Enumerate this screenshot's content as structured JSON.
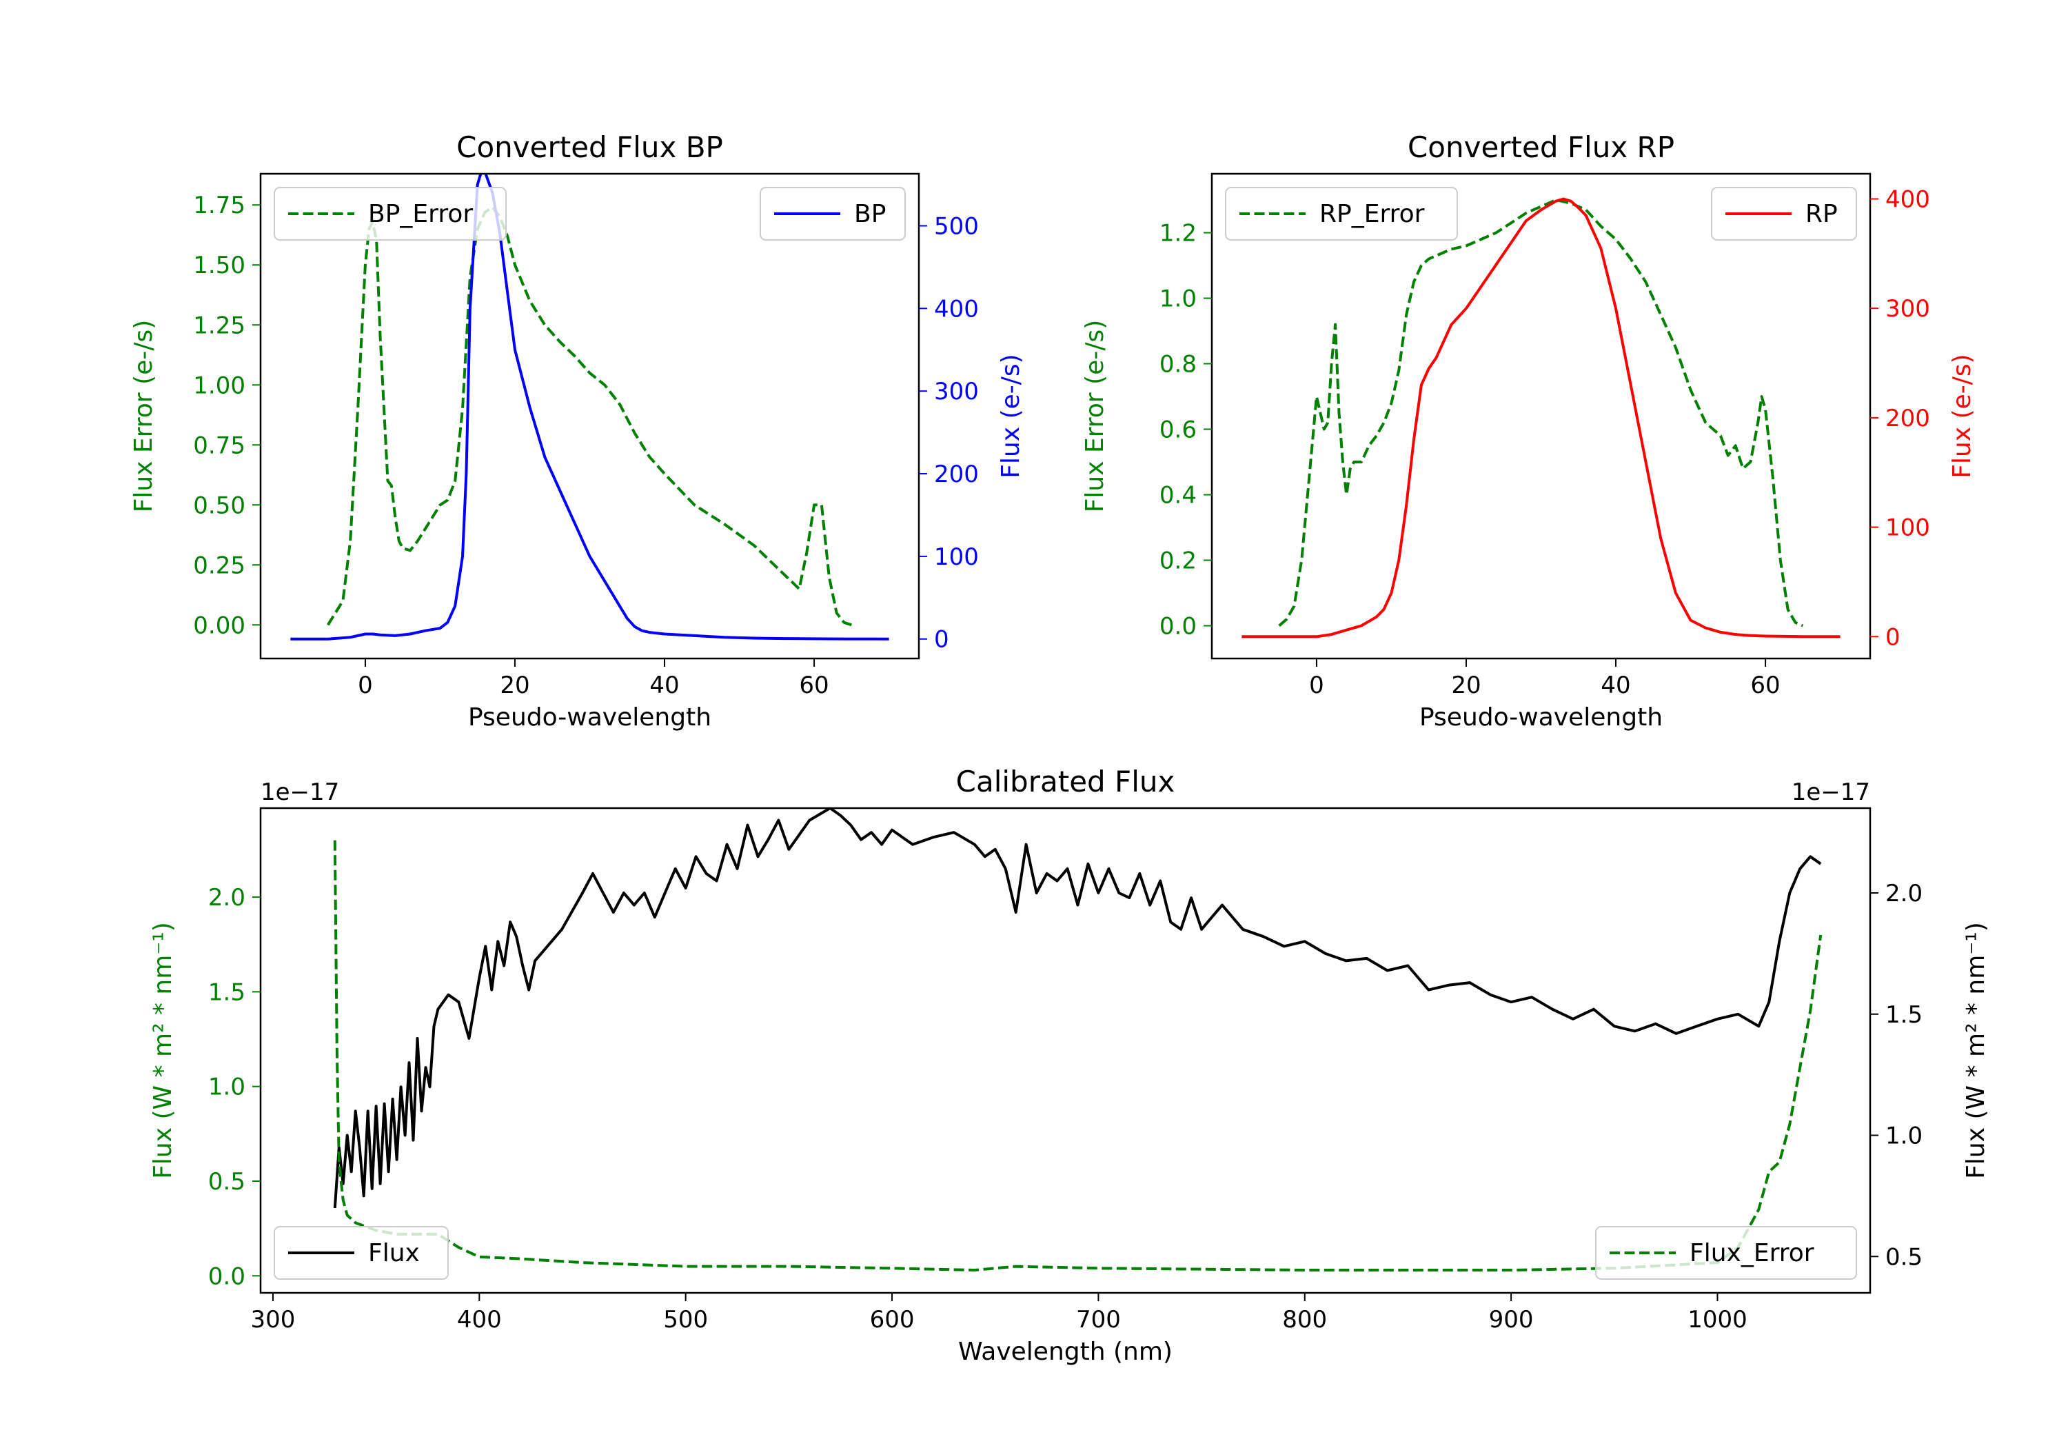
{
  "chart_data": [
    {
      "type": "line",
      "title": "Converted Flux BP",
      "xlabel": "Pseudo-wavelength",
      "ylabel_left": "Flux Error (e-/s)",
      "ylabel_right": "Flux (e-/s)",
      "xlim": [
        -14,
        74
      ],
      "ylim_left": [
        -0.14,
        1.88
      ],
      "ylim_right": [
        -23.6,
        563
      ],
      "xticks": [
        0,
        20,
        40,
        60
      ],
      "yticks_left": [
        0.0,
        0.25,
        0.5,
        0.75,
        1.0,
        1.25,
        1.5,
        1.75
      ],
      "yticks_right": [
        0,
        100,
        200,
        300,
        400,
        500
      ],
      "colors": {
        "error": "#008000",
        "flux": "#0000ff"
      },
      "series": [
        {
          "name": "BP_Error",
          "axis": "left",
          "style": "dashed",
          "x": [
            -5,
            -3,
            -2,
            -1,
            0,
            0.5,
            1,
            1.5,
            2,
            3,
            3.5,
            4,
            4.5,
            5,
            6,
            7,
            8,
            9,
            10,
            11,
            12,
            13,
            14,
            15,
            16,
            17,
            18,
            19,
            20,
            22,
            24,
            26,
            28,
            30,
            32,
            34,
            36,
            38,
            40,
            44,
            48,
            52,
            55,
            57,
            58,
            59,
            60,
            61,
            62,
            63,
            64,
            65
          ],
          "values": [
            0,
            0.1,
            0.35,
            0.9,
            1.5,
            1.65,
            1.68,
            1.6,
            1.2,
            0.6,
            0.58,
            0.45,
            0.35,
            0.32,
            0.31,
            0.35,
            0.4,
            0.45,
            0.5,
            0.52,
            0.6,
            0.9,
            1.45,
            1.65,
            1.72,
            1.74,
            1.7,
            1.62,
            1.5,
            1.35,
            1.25,
            1.18,
            1.12,
            1.05,
            1.0,
            0.92,
            0.8,
            0.7,
            0.63,
            0.5,
            0.42,
            0.33,
            0.24,
            0.18,
            0.15,
            0.3,
            0.5,
            0.5,
            0.2,
            0.05,
            0.01,
            0
          ]
        },
        {
          "name": "BP",
          "axis": "right",
          "style": "solid",
          "x": [
            -10,
            -5,
            -2,
            0,
            1,
            2,
            4,
            6,
            8,
            10,
            11,
            12,
            13,
            13.5,
            14,
            15,
            15.5,
            16,
            17,
            18,
            19,
            20,
            22,
            24,
            26,
            28,
            30,
            32,
            34,
            35,
            36,
            37,
            38,
            40,
            44,
            48,
            52,
            56,
            60,
            64,
            70
          ],
          "values": [
            0,
            0,
            2,
            6,
            6,
            5,
            4,
            6,
            10,
            13,
            20,
            40,
            100,
            200,
            400,
            550,
            565,
            565,
            540,
            490,
            420,
            350,
            280,
            220,
            180,
            140,
            100,
            70,
            40,
            25,
            15,
            10,
            8,
            6,
            4,
            2,
            1,
            0.5,
            0.3,
            0.1,
            0
          ]
        }
      ],
      "legend": [
        {
          "label": "BP_Error",
          "location": "upper left"
        },
        {
          "label": "BP",
          "location": "upper right"
        }
      ]
    },
    {
      "type": "line",
      "title": "Converted Flux RP",
      "xlabel": "Pseudo-wavelength",
      "ylabel_left": "Flux Error (e-/s)",
      "ylabel_right": "Flux (e-/s)",
      "xlim": [
        -14,
        74
      ],
      "ylim_left": [
        -0.1,
        1.38
      ],
      "ylim_right": [
        -20,
        423
      ],
      "xticks": [
        0,
        20,
        40,
        60
      ],
      "yticks_left": [
        0.0,
        0.2,
        0.4,
        0.6,
        0.8,
        1.0,
        1.2
      ],
      "yticks_right": [
        0,
        100,
        200,
        300,
        400
      ],
      "colors": {
        "error": "#008000",
        "flux": "#ff0000"
      },
      "series": [
        {
          "name": "RP_Error",
          "axis": "left",
          "style": "dashed",
          "x": [
            -5,
            -4,
            -3,
            -2,
            -1,
            0,
            0.5,
            1,
            1.5,
            2,
            2.5,
            3,
            3.5,
            4,
            4.5,
            5,
            6,
            7,
            8,
            9,
            10,
            11,
            12,
            13,
            14,
            15,
            16,
            18,
            20,
            22,
            24,
            26,
            28,
            30,
            32,
            34,
            36,
            38,
            40,
            42,
            44,
            46,
            48,
            50,
            52,
            54,
            55,
            56,
            57,
            58,
            59,
            59.5,
            60,
            61,
            62,
            63,
            64,
            65
          ],
          "values": [
            0,
            0.02,
            0.06,
            0.2,
            0.45,
            0.7,
            0.65,
            0.6,
            0.62,
            0.8,
            0.92,
            0.65,
            0.5,
            0.4,
            0.48,
            0.5,
            0.5,
            0.55,
            0.58,
            0.62,
            0.68,
            0.78,
            0.95,
            1.05,
            1.1,
            1.12,
            1.13,
            1.15,
            1.16,
            1.18,
            1.2,
            1.23,
            1.26,
            1.28,
            1.3,
            1.29,
            1.27,
            1.22,
            1.18,
            1.12,
            1.05,
            0.95,
            0.85,
            0.72,
            0.62,
            0.58,
            0.52,
            0.55,
            0.48,
            0.5,
            0.62,
            0.7,
            0.66,
            0.45,
            0.2,
            0.05,
            0.01,
            0
          ]
        },
        {
          "name": "RP",
          "axis": "right",
          "style": "solid",
          "x": [
            -10,
            -5,
            0,
            2,
            4,
            6,
            8,
            9,
            10,
            11,
            12,
            13,
            14,
            15,
            16,
            18,
            20,
            22,
            24,
            26,
            28,
            30,
            32,
            33,
            34,
            35,
            36,
            38,
            40,
            42,
            44,
            46,
            48,
            50,
            52,
            54,
            56,
            58,
            60,
            65,
            70
          ],
          "values": [
            0,
            0,
            0,
            2,
            6,
            10,
            18,
            25,
            40,
            70,
            120,
            180,
            230,
            245,
            255,
            285,
            300,
            320,
            340,
            360,
            380,
            390,
            398,
            400,
            398,
            392,
            385,
            355,
            300,
            230,
            160,
            90,
            40,
            15,
            8,
            4,
            2,
            1,
            0.5,
            0,
            0
          ]
        }
      ],
      "legend": [
        {
          "label": "RP_Error",
          "location": "upper left"
        },
        {
          "label": "RP",
          "location": "upper right"
        }
      ]
    },
    {
      "type": "line",
      "title": "Calibrated Flux",
      "xlabel": "Wavelength (nm)",
      "ylabel_left": "Flux (W * m² * nm⁻¹)",
      "ylabel_right": "Flux (W * m² * nm⁻¹)",
      "offset_left": "1e−17",
      "offset_right": "1e−17",
      "xlim": [
        294,
        1074
      ],
      "ylim_left": [
        -0.09,
        2.47
      ],
      "ylim_right": [
        0.35,
        2.35
      ],
      "xticks": [
        300,
        400,
        500,
        600,
        700,
        800,
        900,
        1000
      ],
      "yticks_left": [
        0.0,
        0.5,
        1.0,
        1.5,
        2.0
      ],
      "yticks_right": [
        0.5,
        1.0,
        1.5,
        2.0
      ],
      "colors": {
        "error": "#008000",
        "flux": "#000000"
      },
      "series": [
        {
          "name": "Flux",
          "axis": "right",
          "style": "solid",
          "x": [
            330,
            332,
            334,
            336,
            338,
            340,
            342,
            344,
            346,
            348,
            350,
            352,
            354,
            356,
            358,
            360,
            362,
            364,
            366,
            368,
            370,
            372,
            374,
            376,
            378,
            380,
            385,
            390,
            395,
            400,
            403,
            406,
            409,
            412,
            415,
            418,
            421,
            424,
            427,
            430,
            440,
            450,
            455,
            460,
            465,
            470,
            475,
            480,
            485,
            490,
            495,
            500,
            505,
            510,
            515,
            520,
            525,
            530,
            535,
            540,
            545,
            550,
            560,
            570,
            575,
            580,
            585,
            590,
            595,
            600,
            610,
            620,
            630,
            640,
            645,
            650,
            655,
            660,
            665,
            670,
            675,
            680,
            685,
            690,
            695,
            700,
            705,
            710,
            715,
            720,
            725,
            730,
            735,
            740,
            745,
            750,
            755,
            760,
            770,
            780,
            790,
            800,
            810,
            820,
            830,
            840,
            850,
            860,
            870,
            880,
            890,
            900,
            910,
            920,
            930,
            940,
            950,
            960,
            970,
            980,
            990,
            1000,
            1010,
            1020,
            1025,
            1030,
            1035,
            1040,
            1045,
            1050
          ],
          "values": [
            0.7,
            0.95,
            0.8,
            1.0,
            0.85,
            1.1,
            0.95,
            0.75,
            1.1,
            0.78,
            1.12,
            0.8,
            1.13,
            0.85,
            1.15,
            0.9,
            1.2,
            1.0,
            1.3,
            0.98,
            1.4,
            1.1,
            1.28,
            1.2,
            1.45,
            1.52,
            1.58,
            1.55,
            1.4,
            1.65,
            1.78,
            1.6,
            1.8,
            1.7,
            1.88,
            1.82,
            1.7,
            1.6,
            1.72,
            1.75,
            1.85,
            2.0,
            2.08,
            2.0,
            1.92,
            2.0,
            1.95,
            2.0,
            1.9,
            2.0,
            2.1,
            2.02,
            2.15,
            2.08,
            2.05,
            2.2,
            2.1,
            2.28,
            2.15,
            2.22,
            2.3,
            2.18,
            2.3,
            2.35,
            2.32,
            2.28,
            2.22,
            2.25,
            2.2,
            2.26,
            2.2,
            2.23,
            2.25,
            2.2,
            2.15,
            2.18,
            2.1,
            1.92,
            2.2,
            2.0,
            2.08,
            2.05,
            2.1,
            1.95,
            2.12,
            2.0,
            2.1,
            2.0,
            1.98,
            2.08,
            1.95,
            2.05,
            1.88,
            1.85,
            1.98,
            1.85,
            1.9,
            1.95,
            1.85,
            1.82,
            1.78,
            1.8,
            1.75,
            1.72,
            1.73,
            1.68,
            1.7,
            1.6,
            1.62,
            1.63,
            1.58,
            1.55,
            1.57,
            1.52,
            1.48,
            1.52,
            1.45,
            1.43,
            1.46,
            1.42,
            1.45,
            1.48,
            1.5,
            1.45,
            1.55,
            1.8,
            2.0,
            2.1,
            2.15,
            2.12
          ]
        },
        {
          "name": "Flux_Error",
          "axis": "left",
          "style": "dashed",
          "x": [
            330,
            331,
            332,
            334,
            336,
            340,
            345,
            350,
            360,
            370,
            380,
            390,
            400,
            420,
            450,
            500,
            550,
            600,
            640,
            660,
            700,
            800,
            900,
            950,
            1000,
            1010,
            1015,
            1020,
            1025,
            1030,
            1035,
            1040,
            1045,
            1050
          ],
          "values": [
            2.3,
            1.2,
            0.6,
            0.4,
            0.32,
            0.28,
            0.26,
            0.24,
            0.22,
            0.22,
            0.22,
            0.15,
            0.1,
            0.09,
            0.07,
            0.05,
            0.05,
            0.04,
            0.03,
            0.05,
            0.04,
            0.03,
            0.03,
            0.04,
            0.07,
            0.15,
            0.25,
            0.35,
            0.55,
            0.6,
            0.8,
            1.1,
            1.4,
            1.8
          ]
        }
      ],
      "legend": [
        {
          "label": "Flux",
          "location": "lower left"
        },
        {
          "label": "Flux_Error",
          "location": "lower right"
        }
      ]
    }
  ]
}
